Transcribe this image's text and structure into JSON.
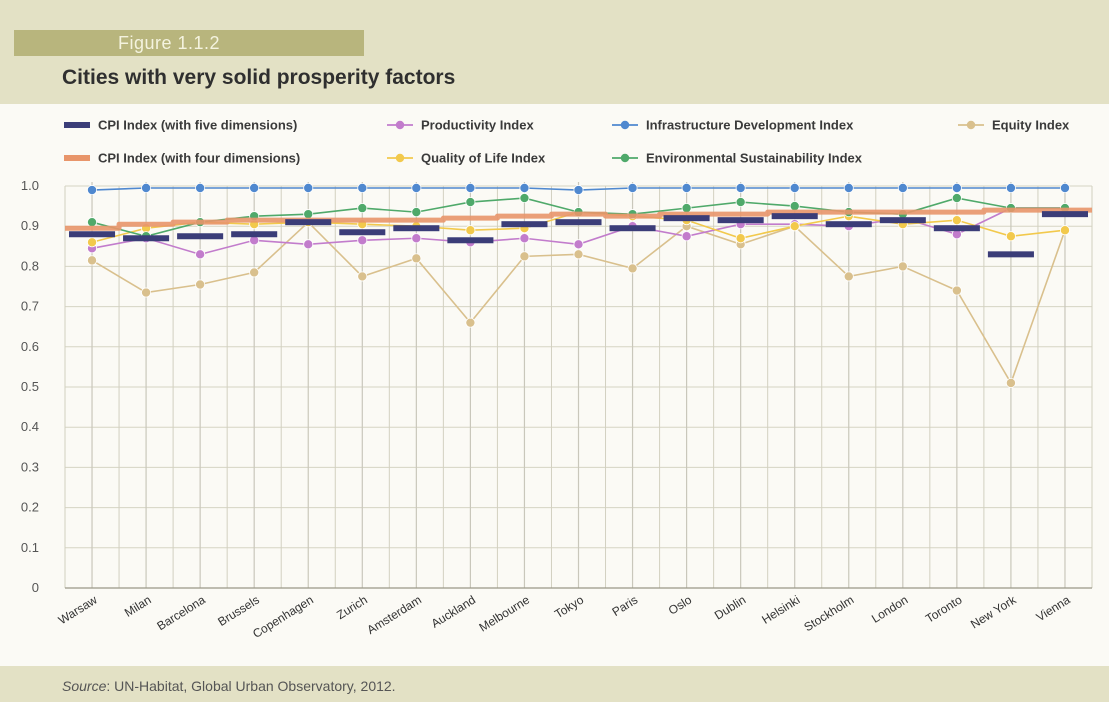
{
  "figure_label": "Figure 1.1.2",
  "title": "Cities with very solid prosperity factors",
  "source_prefix": "Source",
  "source_text": ": UN-Habitat, Global Urban Observatory, 2012.",
  "colors": {
    "cpi5": "#3b3d78",
    "cpi4": "#e8956a",
    "productivity": "#c27ccc",
    "quality": "#f2c94c",
    "infrastructure": "#4f88cf",
    "environment": "#4fa96a",
    "equity": "#d9c08d"
  },
  "chart_data": {
    "type": "line",
    "ylim": [
      0,
      1.0
    ],
    "yticks": [
      "0",
      "0.1",
      "0.2",
      "0.3",
      "0.4",
      "0.5",
      "0.6",
      "0.7",
      "0.8",
      "0.9",
      "1.0"
    ],
    "categories": [
      "Warsaw",
      "Milan",
      "Barcelona",
      "Brussels",
      "Copenhagen",
      "Zurich",
      "Amsterdam",
      "Auckland",
      "Melbourne",
      "Tokyo",
      "Paris",
      "Oslo",
      "Dublin",
      "Helsinki",
      "Stockholm",
      "London",
      "Toronto",
      "New York",
      "Vienna"
    ],
    "series": [
      {
        "name": "CPI Index (with five dimensions)",
        "style": "bar-mark",
        "color_key": "cpi5",
        "values": [
          0.88,
          0.87,
          0.875,
          0.88,
          0.91,
          0.885,
          0.895,
          0.865,
          0.905,
          0.91,
          0.895,
          0.92,
          0.915,
          0.925,
          0.905,
          0.915,
          0.895,
          0.83,
          0.93
        ]
      },
      {
        "name": "CPI Index (with four dimensions)",
        "style": "step-line",
        "color_key": "cpi4",
        "values": [
          0.895,
          0.905,
          0.91,
          0.915,
          0.915,
          0.915,
          0.915,
          0.92,
          0.925,
          0.93,
          0.925,
          0.93,
          0.93,
          0.935,
          0.935,
          0.935,
          0.935,
          0.94,
          0.94
        ]
      },
      {
        "name": "Productivity Index",
        "style": "line",
        "color_key": "productivity",
        "values": [
          0.845,
          0.87,
          0.83,
          0.865,
          0.855,
          0.865,
          0.87,
          0.86,
          0.87,
          0.855,
          0.9,
          0.875,
          0.905,
          0.905,
          0.9,
          0.92,
          0.88,
          0.945,
          0.945
        ]
      },
      {
        "name": "Quality of Life Index",
        "style": "line",
        "color_key": "quality",
        "values": [
          0.86,
          0.895,
          0.91,
          0.905,
          0.91,
          0.905,
          0.9,
          0.89,
          0.895,
          0.935,
          0.925,
          0.915,
          0.87,
          0.9,
          0.925,
          0.905,
          0.915,
          0.875,
          0.89
        ]
      },
      {
        "name": "Infrastructure Development Index",
        "style": "line",
        "color_key": "infrastructure",
        "values": [
          0.99,
          0.995,
          0.995,
          0.995,
          0.995,
          0.995,
          0.995,
          0.995,
          0.995,
          0.99,
          0.995,
          0.995,
          0.995,
          0.995,
          0.995,
          0.995,
          0.995,
          0.995,
          0.995
        ]
      },
      {
        "name": "Environmental Sustainability Index",
        "style": "line",
        "color_key": "environment",
        "values": [
          0.91,
          0.875,
          0.91,
          0.925,
          0.93,
          0.945,
          0.935,
          0.96,
          0.97,
          0.935,
          0.93,
          0.945,
          0.96,
          0.95,
          0.935,
          0.93,
          0.97,
          0.945,
          0.945
        ]
      },
      {
        "name": "Equity Index",
        "style": "line",
        "color_key": "equity",
        "values": [
          0.815,
          0.735,
          0.755,
          0.785,
          0.91,
          0.775,
          0.82,
          0.66,
          0.825,
          0.83,
          0.795,
          0.9,
          0.855,
          0.9,
          0.775,
          0.8,
          0.74,
          0.51,
          0.89
        ]
      }
    ],
    "legend_rows": [
      [
        "CPI Index (with five dimensions)",
        "Productivity Index",
        "Infrastructure Development Index",
        "Equity Index"
      ],
      [
        "CPI Index (with four dimensions)",
        "Quality of Life Index",
        "Environmental Sustainability Index"
      ]
    ]
  }
}
